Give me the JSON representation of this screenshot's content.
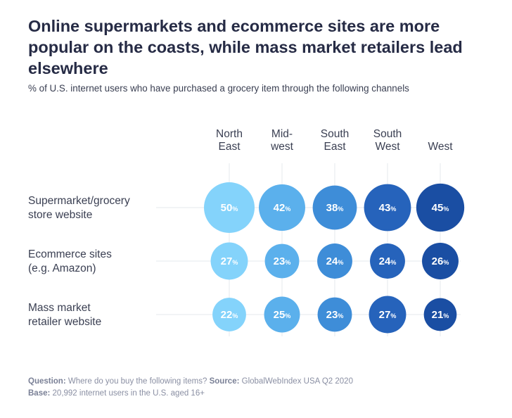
{
  "title": "Online supermarkets and ecommerce sites are more popular on the coasts, while mass market retailers lead elsewhere",
  "subtitle": "% of U.S. internet users who have purchased a grocery item through the following channels",
  "footer": {
    "question_label": "Question:",
    "question_text": "Where do you buy the following items?",
    "source_label": "Source:",
    "source_text": "GlobalWebIndex USA Q2 2020",
    "base_label": "Base:",
    "base_text": "20,992 internet users in the U.S. aged 16+"
  },
  "chart_data": {
    "type": "bubble-matrix",
    "unit": "%",
    "columns": [
      {
        "lines": [
          "North",
          "East"
        ]
      },
      {
        "lines": [
          "Mid-",
          "west"
        ]
      },
      {
        "lines": [
          "South",
          "East"
        ]
      },
      {
        "lines": [
          "South",
          "West"
        ]
      },
      {
        "lines": [
          "West"
        ]
      }
    ],
    "rows": [
      {
        "lines": [
          "Supermarket/grocery",
          "store website"
        ],
        "values": [
          50,
          42,
          38,
          43,
          45
        ]
      },
      {
        "lines": [
          "Ecommerce sites",
          "(e.g. Amazon)"
        ],
        "values": [
          27,
          23,
          24,
          24,
          26
        ]
      },
      {
        "lines": [
          "Mass market",
          "retailer website"
        ],
        "values": [
          22,
          25,
          23,
          27,
          21
        ]
      }
    ],
    "colors": {
      "column_fills": [
        "#84d3fb",
        "#5bb0ec",
        "#3e8dd8",
        "#2663bb",
        "#1a4ea3"
      ],
      "guide_lines": "#e6e8ee"
    }
  }
}
